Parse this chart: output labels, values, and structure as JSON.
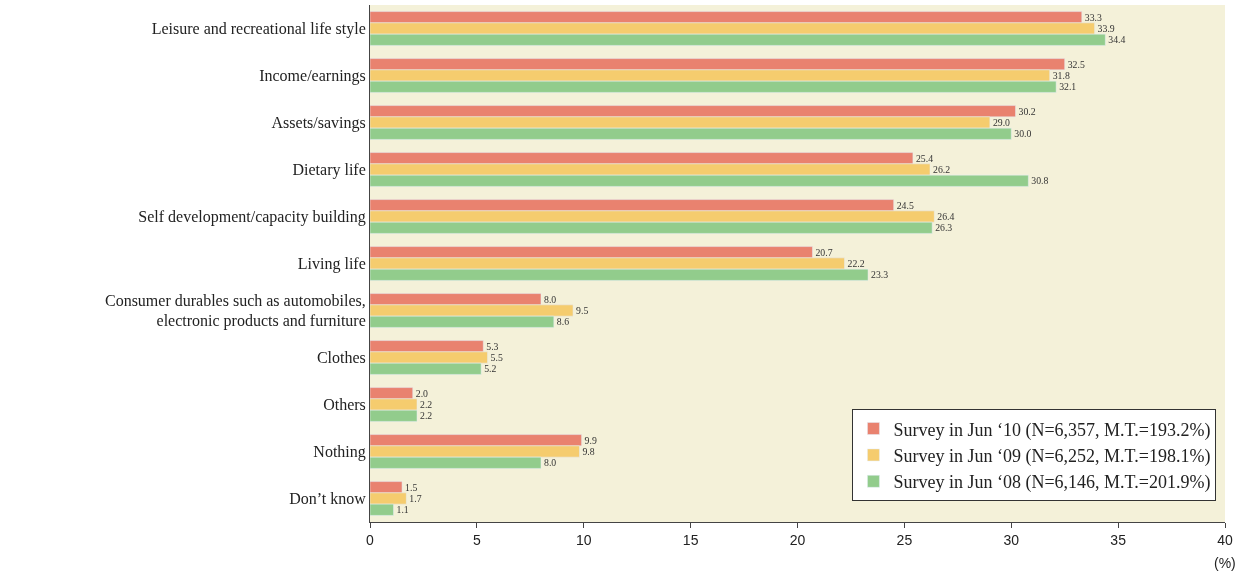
{
  "chart_data": {
    "type": "bar",
    "orientation": "horizontal",
    "categories": [
      "Leisure and recreational life style",
      "Income/earnings",
      "Assets/savings",
      "Dietary life",
      "Self development/capacity building",
      "Living life",
      "Consumer durables such as automobiles,\nelectronic products and furniture",
      "Clothes",
      "Others",
      "Nothing",
      "Don’t know"
    ],
    "series": [
      {
        "name": "Survey in Jun ‘10 (N=6,357, M.T.=193.2%)",
        "color": "#e9826f",
        "values": [
          33.3,
          32.5,
          30.2,
          25.4,
          24.5,
          20.7,
          8.0,
          5.3,
          2.0,
          9.9,
          1.5
        ],
        "value_labels": [
          "33.3",
          "32.5",
          "30.2",
          "25.4",
          "24.5",
          "20.7",
          "8.0",
          "5.3",
          "2.0",
          "9.9",
          "1.5"
        ]
      },
      {
        "name": "Survey in Jun ‘09 (N=6,252, M.T.=198.1%)",
        "color": "#f5cc6e",
        "values": [
          33.9,
          31.8,
          29.0,
          26.2,
          26.4,
          22.2,
          9.5,
          5.5,
          2.2,
          9.8,
          1.7
        ],
        "value_labels": [
          "33.9",
          "31.8",
          "29.0",
          "26.2",
          "26.4",
          "22.2",
          "9.5",
          "5.5",
          "2.2",
          "9.8",
          "1.7"
        ]
      },
      {
        "name": "Survey in Jun ‘08 (N=6,146, M.T.=201.9%)",
        "color": "#92cc8c",
        "values": [
          34.4,
          32.1,
          30.0,
          30.8,
          26.3,
          23.3,
          8.6,
          5.2,
          2.2,
          8.0,
          1.1
        ],
        "value_labels": [
          "34.4",
          "32.1",
          "30.0",
          "30.8",
          "26.3",
          "23.3",
          "8.6",
          "5.2",
          "2.2",
          "8.0",
          "1.1"
        ]
      }
    ],
    "xlim": [
      0,
      40
    ],
    "xticks": [
      0,
      5,
      10,
      15,
      20,
      25,
      30,
      35,
      40
    ],
    "xlabel": "(%)",
    "grid": false,
    "legend": "bottom right"
  }
}
